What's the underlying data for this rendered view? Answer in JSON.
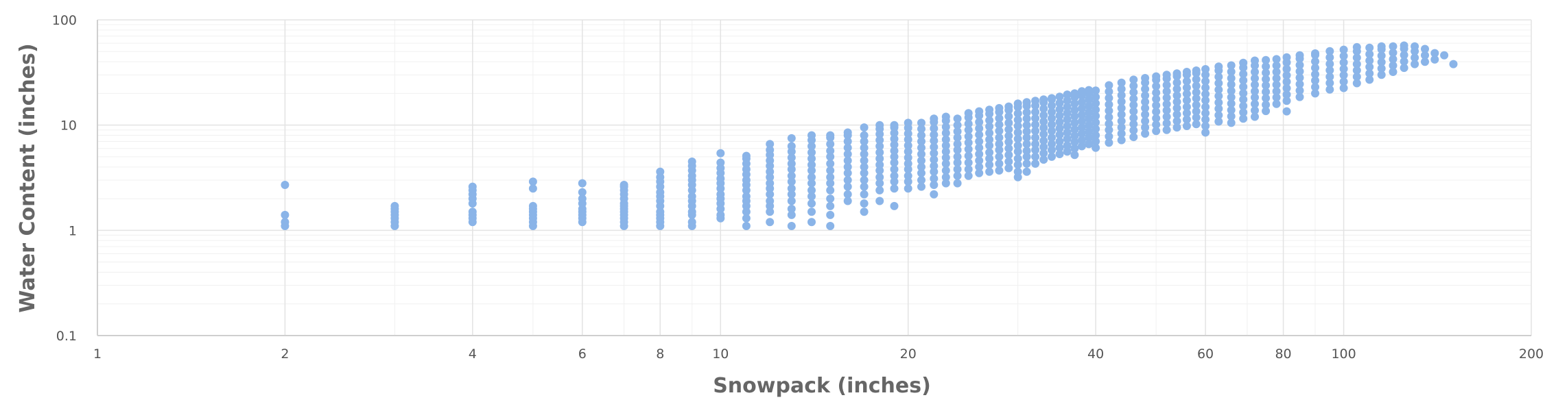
{
  "chart_data": {
    "type": "scatter",
    "xlabel": "Snowpack (inches)",
    "ylabel": "Water Content (inches)",
    "x_scale": "log",
    "y_scale": "log",
    "xlim": [
      1,
      200
    ],
    "ylim": [
      0.1,
      100
    ],
    "x_ticks": [
      "1",
      "2",
      "4",
      "6",
      "8",
      "10",
      "20",
      "40",
      "60",
      "80",
      "100",
      "200"
    ],
    "y_ticks": [
      "0.1",
      "1",
      "10",
      "100"
    ],
    "grid": true,
    "legend": "none",
    "color": "#8ab4e8",
    "columns": [
      {
        "x": 2,
        "y": [
          1.1,
          1.2,
          1.4,
          2.7
        ]
      },
      {
        "x": 3,
        "y": [
          1.1,
          1.2,
          1.3,
          1.4,
          1.5,
          1.6,
          1.7
        ]
      },
      {
        "x": 4,
        "y": [
          1.2,
          1.3,
          1.4,
          1.5,
          1.8,
          2.0,
          2.2,
          2.4,
          2.6
        ]
      },
      {
        "x": 5,
        "y": [
          1.1,
          1.2,
          1.3,
          1.4,
          1.5,
          1.6,
          1.7,
          2.5,
          2.9
        ]
      },
      {
        "x": 6,
        "y": [
          1.2,
          1.3,
          1.4,
          1.5,
          1.6,
          1.8,
          2.0,
          2.3,
          2.8
        ]
      },
      {
        "x": 7,
        "y": [
          1.1,
          1.2,
          1.3,
          1.4,
          1.5,
          1.6,
          1.7,
          1.8,
          2.0,
          2.2,
          2.4,
          2.6,
          2.7
        ]
      },
      {
        "x": 8,
        "y": [
          1.1,
          1.2,
          1.3,
          1.4,
          1.5,
          1.7,
          1.9,
          2.1,
          2.3,
          2.6,
          2.9,
          3.2,
          3.6
        ]
      },
      {
        "x": 9,
        "y": [
          1.1,
          1.2,
          1.4,
          1.5,
          1.7,
          1.9,
          2.1,
          2.4,
          2.7,
          3.0,
          3.3,
          3.7,
          4.1,
          4.5
        ]
      },
      {
        "x": 10,
        "y": [
          1.3,
          1.4,
          1.6,
          1.8,
          2.0,
          2.2,
          2.5,
          2.8,
          3.1,
          3.5,
          3.9,
          4.4,
          5.4
        ]
      },
      {
        "x": 11,
        "y": [
          1.1,
          1.3,
          1.5,
          1.7,
          1.9,
          2.1,
          2.4,
          2.7,
          3.0,
          3.4,
          3.8,
          4.3,
          4.8,
          5.1
        ]
      },
      {
        "x": 12,
        "y": [
          1.2,
          1.5,
          1.7,
          1.9,
          2.2,
          2.5,
          2.8,
          3.2,
          3.6,
          4.1,
          4.6,
          5.2,
          5.8,
          6.6
        ]
      },
      {
        "x": 13,
        "y": [
          1.1,
          1.4,
          1.6,
          1.9,
          2.2,
          2.5,
          2.9,
          3.3,
          3.8,
          4.3,
          4.9,
          5.6,
          6.3,
          7.5
        ]
      },
      {
        "x": 14,
        "y": [
          1.2,
          1.5,
          1.8,
          2.1,
          2.4,
          2.8,
          3.2,
          3.7,
          4.2,
          4.8,
          5.5,
          6.3,
          7.2,
          8.0
        ]
      },
      {
        "x": 15,
        "y": [
          1.1,
          1.4,
          1.7,
          2.0,
          2.4,
          2.8,
          3.2,
          3.7,
          4.3,
          5.0,
          5.7,
          6.6,
          7.6,
          8.0
        ]
      },
      {
        "x": 16,
        "y": [
          1.9,
          2.2,
          2.6,
          3.0,
          3.5,
          4.0,
          4.6,
          5.3,
          6.1,
          7.0,
          8.0,
          8.5
        ]
      },
      {
        "x": 17,
        "y": [
          1.5,
          1.8,
          2.2,
          2.6,
          3.0,
          3.5,
          4.0,
          4.6,
          5.3,
          6.1,
          7.0,
          8.0,
          9.5
        ]
      },
      {
        "x": 18,
        "y": [
          1.9,
          2.4,
          2.8,
          3.2,
          3.7,
          4.2,
          4.8,
          5.5,
          6.3,
          7.2,
          8.2,
          9.2,
          10
        ]
      },
      {
        "x": 19,
        "y": [
          1.7,
          2.5,
          2.9,
          3.3,
          3.8,
          4.4,
          5.0,
          5.7,
          6.5,
          7.4,
          8.4,
          9.5,
          10
        ]
      },
      {
        "x": 20,
        "y": [
          2.5,
          2.9,
          3.3,
          3.8,
          4.3,
          4.9,
          5.6,
          6.4,
          7.3,
          8.3,
          9.4,
          10.5
        ]
      },
      {
        "x": 21,
        "y": [
          2.6,
          3.0,
          3.5,
          4.0,
          4.6,
          5.3,
          6.1,
          7.0,
          8.0,
          9.2,
          10.5
        ]
      },
      {
        "x": 22,
        "y": [
          2.2,
          2.7,
          3.1,
          3.6,
          4.1,
          4.7,
          5.4,
          6.2,
          7.1,
          8.1,
          9.3,
          10.7,
          11.5
        ]
      },
      {
        "x": 23,
        "y": [
          2.8,
          3.2,
          3.7,
          4.3,
          4.9,
          5.6,
          6.4,
          7.3,
          8.4,
          9.6,
          11,
          12
        ]
      },
      {
        "x": 24,
        "y": [
          2.8,
          3.3,
          3.8,
          4.4,
          5.0,
          5.8,
          6.6,
          7.6,
          8.7,
          10,
          11.5
        ]
      },
      {
        "x": 25,
        "y": [
          3.3,
          3.8,
          4.4,
          5.1,
          5.9,
          6.8,
          7.8,
          9.0,
          10.3,
          11.8,
          13
        ]
      },
      {
        "x": 26,
        "y": [
          3.5,
          4.0,
          4.6,
          5.3,
          6.1,
          7.0,
          8.1,
          9.3,
          10.7,
          12.3,
          13.5
        ]
      },
      {
        "x": 27,
        "y": [
          3.6,
          4.2,
          4.8,
          5.5,
          6.4,
          7.3,
          8.4,
          9.7,
          11.1,
          12.8,
          14
        ]
      },
      {
        "x": 28,
        "y": [
          3.7,
          4.3,
          5.0,
          5.8,
          6.6,
          7.6,
          8.8,
          10.1,
          11.6,
          13.3,
          14.5
        ]
      },
      {
        "x": 29,
        "y": [
          3.9,
          4.5,
          5.2,
          6.0,
          6.9,
          7.9,
          9.1,
          10.5,
          12.1,
          13.9,
          15
        ]
      },
      {
        "x": 30,
        "y": [
          3.2,
          3.6,
          4.2,
          4.8,
          5.6,
          6.4,
          7.4,
          8.5,
          9.8,
          11.2,
          12.9,
          14.8,
          16
        ]
      },
      {
        "x": 31,
        "y": [
          3.6,
          4.3,
          5.0,
          5.7,
          6.6,
          7.6,
          8.7,
          10,
          11.5,
          13.2,
          15.2,
          16.5
        ]
      },
      {
        "x": 32,
        "y": [
          4.3,
          5.0,
          5.8,
          6.6,
          7.6,
          8.8,
          10.1,
          11.6,
          13.3,
          15.3,
          17
        ]
      },
      {
        "x": 33,
        "y": [
          4.7,
          5.4,
          6.2,
          7.1,
          8.2,
          9.4,
          10.8,
          12.4,
          14.3,
          16.4,
          17.5
        ]
      },
      {
        "x": 34,
        "y": [
          5.0,
          5.8,
          6.6,
          7.6,
          8.8,
          10.1,
          11.6,
          13.3,
          15.3,
          17.5,
          18
        ]
      },
      {
        "x": 35,
        "y": [
          5.3,
          6.1,
          7.0,
          8.1,
          9.3,
          10.7,
          12.3,
          14.1,
          16.2,
          18.6
        ]
      },
      {
        "x": 36,
        "y": [
          5.6,
          6.4,
          7.4,
          8.5,
          9.8,
          11.3,
          13,
          14.9,
          17.1,
          19.5
        ]
      },
      {
        "x": 37,
        "y": [
          5.2,
          6.0,
          6.9,
          7.9,
          9.1,
          10.5,
          12.1,
          13.9,
          16,
          18.4,
          20
        ]
      },
      {
        "x": 38,
        "y": [
          6.3,
          7.2,
          8.3,
          9.5,
          10.9,
          12.5,
          14.4,
          16.5,
          19,
          21
        ]
      },
      {
        "x": 39,
        "y": [
          6.6,
          7.6,
          8.7,
          10,
          11.5,
          13.2,
          15.2,
          17.5,
          20,
          21.5
        ]
      },
      {
        "x": 40,
        "y": [
          6.1,
          7.0,
          8.0,
          9.2,
          10.6,
          12.2,
          14,
          16.1,
          18.5,
          21.3
        ]
      },
      {
        "x": 42,
        "y": [
          6.8,
          7.8,
          9.0,
          10.3,
          11.9,
          13.7,
          15.7,
          18.1,
          20.8,
          23.9
        ]
      },
      {
        "x": 44,
        "y": [
          7.2,
          8.3,
          9.5,
          10.9,
          12.6,
          14.5,
          16.7,
          19.2,
          22,
          25.3
        ]
      },
      {
        "x": 46,
        "y": [
          7.7,
          8.9,
          10.2,
          11.7,
          13.5,
          15.5,
          17.8,
          20.5,
          23.6,
          27
        ]
      },
      {
        "x": 48,
        "y": [
          8.3,
          9.5,
          10.9,
          12.6,
          14.5,
          16.6,
          19.1,
          22,
          25.3,
          28
        ]
      },
      {
        "x": 50,
        "y": [
          8.8,
          10.1,
          11.6,
          13.4,
          15.4,
          17.7,
          20.3,
          23.4,
          26.9,
          29
        ]
      },
      {
        "x": 52,
        "y": [
          9.0,
          10.4,
          12.0,
          13.8,
          15.8,
          18.2,
          20.9,
          24,
          27.6,
          30
        ]
      },
      {
        "x": 54,
        "y": [
          9.5,
          10.9,
          12.6,
          14.5,
          16.6,
          19.1,
          22,
          25.3,
          29.1,
          31
        ]
      },
      {
        "x": 56,
        "y": [
          9.8,
          11.3,
          13,
          14.9,
          17.2,
          19.8,
          22.7,
          26.1,
          30,
          32
        ]
      },
      {
        "x": 58,
        "y": [
          10.2,
          11.8,
          13.5,
          15.5,
          17.9,
          20.5,
          23.6,
          27.2,
          31.2,
          33
        ]
      },
      {
        "x": 60,
        "y": [
          8.5,
          9.8,
          11.3,
          13,
          14.9,
          17.2,
          19.7,
          22.7,
          26.1,
          30,
          34
        ]
      },
      {
        "x": 63,
        "y": [
          10.8,
          12.4,
          14.3,
          16.4,
          18.9,
          21.7,
          25,
          28.7,
          33,
          36
        ]
      },
      {
        "x": 66,
        "y": [
          10.5,
          12.1,
          13.9,
          16,
          18.4,
          21.1,
          24.3,
          27.9,
          32.1,
          36.9
        ]
      },
      {
        "x": 69,
        "y": [
          11.5,
          13.2,
          15.2,
          17.5,
          20.1,
          23.1,
          26.6,
          30.6,
          35.2,
          39
        ]
      },
      {
        "x": 72,
        "y": [
          12,
          13.8,
          15.9,
          18.3,
          21,
          24.2,
          27.8,
          32,
          36.8,
          41
        ]
      },
      {
        "x": 75,
        "y": [
          13.6,
          15.6,
          18,
          20.7,
          23.8,
          27.3,
          31.4,
          36.1,
          41.5
        ]
      },
      {
        "x": 78,
        "y": [
          15.9,
          18.3,
          21,
          24.2,
          27.8,
          32,
          36.8,
          42.3
        ]
      },
      {
        "x": 81,
        "y": [
          13.5,
          17,
          19.5,
          22.4,
          25.8,
          29.7,
          34.1,
          39.3,
          44
        ]
      },
      {
        "x": 85,
        "y": [
          18.5,
          21.3,
          24.5,
          28.2,
          32.4,
          37.2,
          42.8,
          46
        ]
      },
      {
        "x": 90,
        "y": [
          20,
          23,
          26.5,
          30.4,
          35,
          40.2,
          46.3,
          48
        ]
      },
      {
        "x": 95,
        "y": [
          21.8,
          25.1,
          28.8,
          33.2,
          38.1,
          43.9,
          50.4
        ]
      },
      {
        "x": 100,
        "y": [
          22.5,
          25.9,
          29.8,
          34.2,
          39.4,
          45.3,
          52
        ]
      },
      {
        "x": 105,
        "y": [
          25,
          28.8,
          33.1,
          38,
          43.7,
          50.3,
          55
        ]
      },
      {
        "x": 110,
        "y": [
          27,
          31,
          35.7,
          41,
          47.2,
          54.3
        ]
      },
      {
        "x": 115,
        "y": [
          30,
          34.5,
          39.7,
          45.6,
          52.5,
          56
        ]
      },
      {
        "x": 120,
        "y": [
          32,
          36.8,
          42.3,
          48.7,
          56
        ]
      },
      {
        "x": 125,
        "y": [
          35,
          40.3,
          46.3,
          53.2,
          57
        ]
      },
      {
        "x": 130,
        "y": [
          38,
          43.7,
          50.3,
          56
        ]
      },
      {
        "x": 135,
        "y": [
          40,
          46,
          52.9
        ]
      },
      {
        "x": 140,
        "y": [
          42,
          48.3
        ]
      },
      {
        "x": 145,
        "y": [
          46
        ]
      },
      {
        "x": 150,
        "y": [
          38
        ]
      }
    ]
  }
}
